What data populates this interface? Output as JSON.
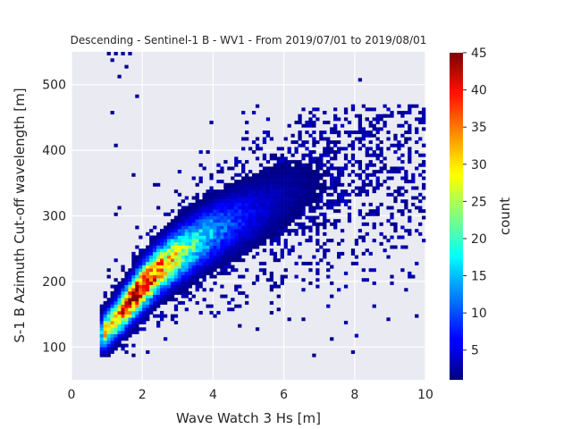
{
  "chart_data": {
    "type": "heatmap",
    "title": "Descending - Sentinel-1 B - WV1 - From 2019/07/01 to 2019/08/01",
    "xlabel": "Wave Watch 3 Hs [m]",
    "ylabel": "S-1 B Azimuth Cut-off wavelength [m]",
    "colorbar_label": "count",
    "xlim": [
      0,
      10
    ],
    "ylim": [
      50,
      550
    ],
    "xticks": [
      0,
      2,
      4,
      6,
      8,
      10
    ],
    "yticks": [
      100,
      200,
      300,
      400,
      500
    ],
    "colorbar_range": [
      1,
      45
    ],
    "colorbar_ticks": [
      5,
      10,
      15,
      20,
      25,
      30,
      35,
      40,
      45
    ],
    "colormap": "jet",
    "background_color": "#eaeaf2",
    "grid": true,
    "bin_width_x": 0.1,
    "bin_width_y": 5,
    "ridge_center": [
      {
        "x": 1.2,
        "y": 140
      },
      {
        "x": 1.8,
        "y": 180
      },
      {
        "x": 2.4,
        "y": 215
      },
      {
        "x": 3.0,
        "y": 240
      },
      {
        "x": 4.0,
        "y": 275
      },
      {
        "x": 5.0,
        "y": 300
      },
      {
        "x": 6.0,
        "y": 330
      },
      {
        "x": 7.0,
        "y": 350
      },
      {
        "x": 8.0,
        "y": 370
      },
      {
        "x": 9.0,
        "y": 400
      }
    ],
    "peak_density": {
      "x": 1.8,
      "y": 180,
      "count": 45
    }
  }
}
